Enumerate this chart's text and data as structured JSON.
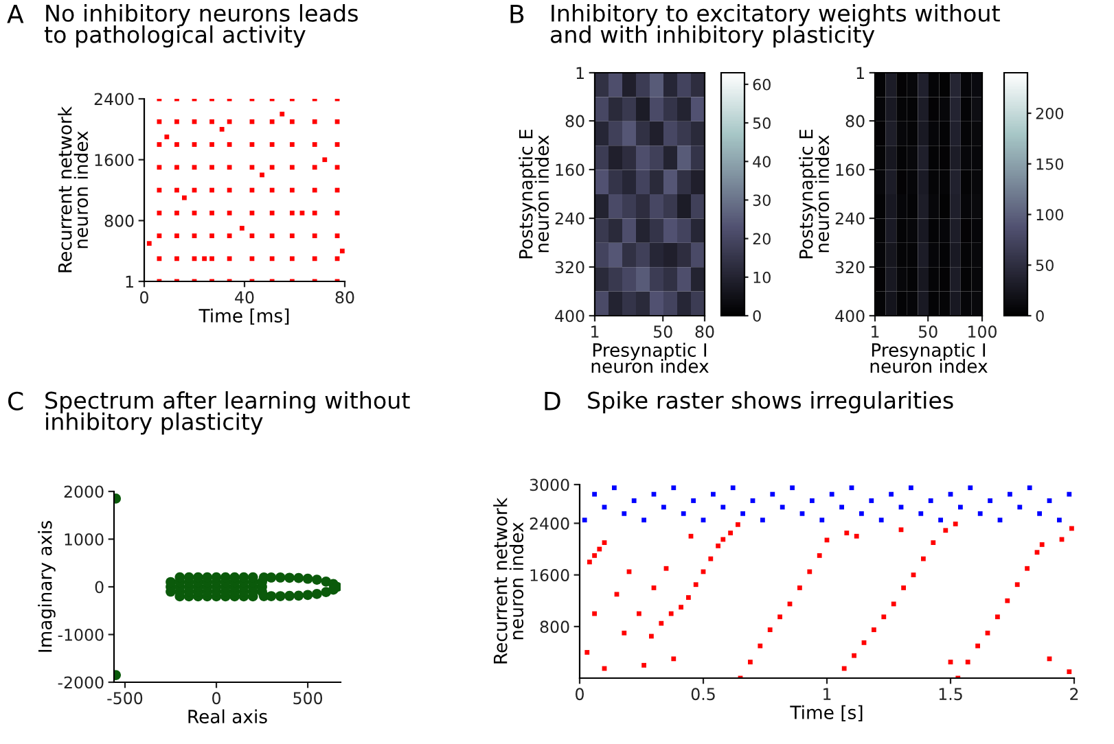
{
  "chart_data": [
    {
      "type": "scatter",
      "title": "No inhibitory neurons leads\nto pathological activity",
      "annotations": [
        "A"
      ],
      "xlabel": "Time [ms]",
      "ylabel": "Recurrent network\nneuron index",
      "marker": "square",
      "series": [
        {
          "color": "#ff0000",
          "x": [
            6,
            6,
            6,
            6,
            6,
            6,
            6,
            6,
            6,
            13,
            13,
            13,
            13,
            13,
            13,
            13,
            13,
            13,
            20,
            20,
            20,
            20,
            20,
            20,
            20,
            20,
            20,
            27,
            27,
            27,
            27,
            27,
            27,
            27,
            27,
            27,
            34,
            34,
            34,
            34,
            34,
            34,
            34,
            34,
            34,
            43,
            43,
            43,
            43,
            43,
            43,
            43,
            43,
            43,
            51,
            51,
            51,
            51,
            51,
            51,
            51,
            51,
            51,
            59,
            59,
            59,
            59,
            59,
            59,
            59,
            59,
            59,
            68,
            68,
            68,
            68,
            68,
            68,
            68,
            68,
            68,
            77,
            77,
            77,
            77,
            77,
            77,
            77,
            77,
            77,
            2,
            9,
            16,
            24,
            31,
            39,
            47,
            55,
            63,
            72,
            79
          ],
          "values": [
            1,
            300,
            600,
            900,
            1200,
            1500,
            1800,
            2100,
            2400,
            1,
            300,
            600,
            900,
            1200,
            1500,
            1800,
            2100,
            2400,
            1,
            300,
            600,
            900,
            1200,
            1500,
            1800,
            2100,
            2400,
            1,
            300,
            600,
            900,
            1200,
            1500,
            1800,
            2100,
            2400,
            1,
            300,
            600,
            900,
            1200,
            1500,
            1800,
            2100,
            2400,
            1,
            300,
            600,
            900,
            1200,
            1500,
            1800,
            2100,
            2400,
            1,
            300,
            600,
            900,
            1200,
            1500,
            1800,
            2100,
            2400,
            1,
            300,
            600,
            900,
            1200,
            1500,
            1800,
            2100,
            2400,
            1,
            300,
            600,
            900,
            1200,
            1500,
            1800,
            2100,
            2400,
            1,
            300,
            600,
            900,
            1200,
            1500,
            1800,
            2100,
            2400,
            500,
            1900,
            1100,
            300,
            2000,
            700,
            1400,
            2200,
            900,
            1600,
            400
          ]
        }
      ],
      "xlim": [
        0,
        80
      ],
      "ylim": [
        1,
        2400
      ],
      "xticks": [
        0,
        40,
        80
      ],
      "yticks": [
        1,
        800,
        1600,
        2400
      ]
    },
    {
      "type": "heatmap",
      "title": "Inhibitory to excitatory weights without\nand with inhibitory plasticity",
      "annotations": [
        "B"
      ],
      "xlabel": "Presynaptic I\nneuron index",
      "ylabel": "Postsynaptic E\nneuron index",
      "cells": [
        [
          14,
          22,
          9,
          17,
          25,
          11,
          19,
          13
        ],
        [
          20,
          12,
          16,
          8,
          21,
          15,
          10,
          23
        ],
        [
          11,
          18,
          24,
          14,
          9,
          20,
          16,
          12
        ],
        [
          17,
          9,
          13,
          22,
          18,
          10,
          25,
          15
        ],
        [
          23,
          15,
          11,
          19,
          12,
          24,
          14,
          9
        ],
        [
          10,
          21,
          17,
          13,
          20,
          16,
          8,
          18
        ],
        [
          16,
          12,
          22,
          10,
          15,
          23,
          19,
          11
        ],
        [
          19,
          24,
          14,
          18,
          11,
          9,
          13,
          21
        ],
        [
          12,
          16,
          20,
          25,
          17,
          14,
          22,
          10
        ],
        [
          21,
          10,
          15,
          12,
          23,
          19,
          11,
          17
        ]
      ],
      "clim": [
        0,
        63
      ],
      "cticks": [
        0,
        10,
        20,
        30,
        40,
        50,
        60
      ],
      "xlim": [
        1,
        80
      ],
      "ylim": [
        400,
        1
      ],
      "xticks": [
        1,
        50,
        80
      ],
      "yticks": [
        1,
        80,
        160,
        240,
        320,
        400
      ]
    },
    {
      "type": "heatmap",
      "xlabel": "Presynaptic I\nneuron index",
      "ylabel": "Postsynaptic E\nneuron index",
      "cells": [
        [
          5,
          30,
          4,
          8,
          35,
          6,
          3,
          40,
          7,
          12
        ],
        [
          7,
          28,
          6,
          5,
          30,
          4,
          8,
          38,
          5,
          15
        ],
        [
          4,
          32,
          8,
          6,
          28,
          7,
          5,
          35,
          6,
          10
        ],
        [
          6,
          25,
          5,
          9,
          33,
          5,
          4,
          30,
          8,
          8
        ],
        [
          8,
          30,
          4,
          7,
          29,
          6,
          6,
          36,
          5,
          9
        ],
        [
          5,
          27,
          7,
          5,
          31,
          8,
          3,
          33,
          7,
          11
        ],
        [
          6,
          29,
          5,
          8,
          27,
          5,
          7,
          31,
          4,
          7
        ],
        [
          7,
          24,
          6,
          6,
          30,
          7,
          5,
          28,
          6,
          9
        ],
        [
          4,
          26,
          8,
          5,
          25,
          6,
          4,
          30,
          5,
          8
        ],
        [
          6,
          22,
          5,
          7,
          28,
          5,
          6,
          27,
          7,
          10
        ]
      ],
      "clim": [
        0,
        240
      ],
      "cticks": [
        0,
        50,
        100,
        150,
        200
      ],
      "xlim": [
        1,
        100
      ],
      "ylim": [
        400,
        1
      ],
      "xticks": [
        1,
        50,
        100
      ],
      "yticks": [
        1,
        80,
        160,
        240,
        320,
        400
      ]
    },
    {
      "type": "scatter",
      "title": "Spectrum after learning without\ninhibitory plasticity",
      "annotations": [
        "C"
      ],
      "xlabel": "Real axis",
      "ylabel": "Imaginary axis",
      "marker": "circle",
      "series": [
        {
          "color": "#0b5a0b",
          "x": [
            -550,
            -550,
            -250,
            -250,
            -250,
            -200,
            -200,
            -200,
            -200,
            -200,
            -150,
            -150,
            -150,
            -150,
            -150,
            -100,
            -100,
            -100,
            -100,
            -100,
            -50,
            -50,
            -50,
            -50,
            -50,
            0,
            0,
            0,
            0,
            0,
            50,
            50,
            50,
            50,
            50,
            100,
            100,
            100,
            100,
            100,
            150,
            150,
            150,
            150,
            150,
            200,
            200,
            200,
            200,
            200,
            250,
            250,
            250,
            260,
            300,
            350,
            400,
            450,
            500,
            550,
            600,
            640,
            660,
            260,
            300,
            350,
            400,
            450,
            500,
            550,
            600,
            640
          ],
          "values": [
            1850,
            -1850,
            -100,
            0,
            100,
            -200,
            -100,
            0,
            100,
            200,
            -200,
            -100,
            0,
            100,
            200,
            -200,
            -100,
            0,
            100,
            200,
            -200,
            -100,
            0,
            100,
            200,
            -200,
            -100,
            0,
            100,
            200,
            -200,
            -100,
            0,
            100,
            200,
            -200,
            -100,
            0,
            100,
            200,
            -200,
            -100,
            0,
            100,
            200,
            -200,
            -100,
            0,
            100,
            200,
            -100,
            0,
            100,
            195,
            195,
            195,
            190,
            185,
            170,
            150,
            110,
            60,
            0,
            -195,
            -195,
            -195,
            -190,
            -185,
            -170,
            -150,
            -110,
            -60
          ]
        }
      ],
      "xlim": [
        -560,
        680
      ],
      "ylim": [
        -2000,
        2000
      ],
      "xticks": [
        -500,
        0,
        500
      ],
      "yticks": [
        -2000,
        -1000,
        0,
        1000,
        2000
      ]
    },
    {
      "type": "scatter",
      "title": "Spike raster shows irregularities",
      "annotations": [
        "D"
      ],
      "xlabel": "Time [s]",
      "ylabel": "Recurrent network\nneuron index",
      "marker": "square",
      "series": [
        {
          "color": "#ff0000",
          "x": [
            0.04,
            0.06,
            0.08,
            0.1,
            0.29,
            0.33,
            0.37,
            0.41,
            0.44,
            0.47,
            0.5,
            0.53,
            0.56,
            0.58,
            0.61,
            0.64,
            0.65,
            0.69,
            0.73,
            0.77,
            0.81,
            0.85,
            0.89,
            0.93,
            0.97,
            1.0,
            1.07,
            1.11,
            1.15,
            1.19,
            1.23,
            1.27,
            1.31,
            1.35,
            1.39,
            1.43,
            1.48,
            1.52,
            1.53,
            1.57,
            1.61,
            1.65,
            1.69,
            1.73,
            1.77,
            1.81,
            1.85,
            1.87,
            1.95,
            1.99,
            0.03,
            0.06,
            0.1,
            0.15,
            0.18,
            0.2,
            0.24,
            0.26,
            0.3,
            0.35,
            0.38,
            0.45,
            1.08,
            1.12,
            1.3,
            1.5,
            1.9,
            1.98
          ],
          "values": [
            1800,
            1900,
            2000,
            2100,
            650,
            850,
            1000,
            1100,
            1250,
            1450,
            1650,
            1850,
            2050,
            2150,
            2250,
            2380,
            1,
            250,
            500,
            750,
            950,
            1150,
            1400,
            1650,
            1900,
            2140,
            150,
            350,
            550,
            750,
            950,
            1150,
            1400,
            1600,
            1850,
            2100,
            2290,
            2390,
            1,
            250,
            500,
            700,
            950,
            1200,
            1450,
            1700,
            1950,
            2070,
            2150,
            2320,
            400,
            1000,
            150,
            1300,
            700,
            1650,
            1000,
            200,
            1400,
            1700,
            300,
            2200,
            2250,
            2200,
            2300,
            250,
            300,
            100
          ]
        },
        {
          "color": "#0000ff",
          "x": [
            0.02,
            0.06,
            0.1,
            0.14,
            0.18,
            0.22,
            0.26,
            0.3,
            0.34,
            0.38,
            0.42,
            0.46,
            0.5,
            0.54,
            0.58,
            0.62,
            0.66,
            0.7,
            0.74,
            0.78,
            0.82,
            0.86,
            0.9,
            0.94,
            0.98,
            1.02,
            1.06,
            1.1,
            1.14,
            1.18,
            1.22,
            1.26,
            1.3,
            1.34,
            1.38,
            1.42,
            1.46,
            1.5,
            1.54,
            1.58,
            1.62,
            1.66,
            1.7,
            1.74,
            1.78,
            1.82,
            1.86,
            1.9,
            1.94,
            1.98
          ],
          "values": [
            2450,
            2850,
            2650,
            2950,
            2550,
            2750,
            2450,
            2850,
            2650,
            2950,
            2550,
            2750,
            2450,
            2850,
            2650,
            2950,
            2550,
            2750,
            2450,
            2850,
            2650,
            2950,
            2550,
            2750,
            2450,
            2850,
            2650,
            2950,
            2550,
            2750,
            2450,
            2850,
            2650,
            2950,
            2550,
            2750,
            2450,
            2850,
            2650,
            2950,
            2550,
            2750,
            2450,
            2850,
            2650,
            2950,
            2550,
            2750,
            2450,
            2850
          ]
        }
      ],
      "xlim": [
        0,
        2
      ],
      "ylim": [
        1,
        3000
      ],
      "xticks": [
        0,
        0.5,
        1,
        1.5,
        2
      ],
      "yticks": [
        800,
        1600,
        2400,
        3000
      ]
    }
  ]
}
